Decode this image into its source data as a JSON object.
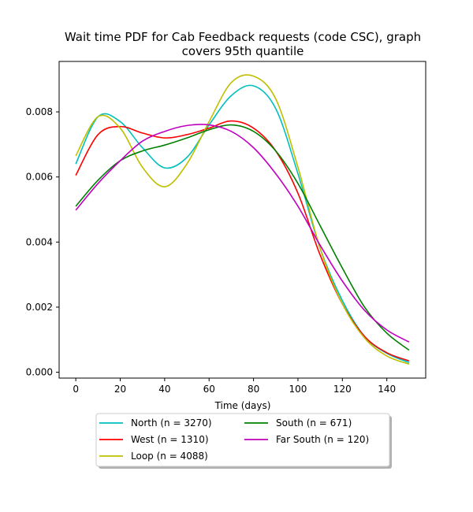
{
  "chart_data": {
    "type": "line",
    "title_line1": "Wait time PDF for Cab Feedback  requests (code CSC), graph",
    "title_line2": "covers 95th quantile",
    "xlabel": "Time (days)",
    "ylabel": "",
    "xlim": [
      -7.5,
      157.5
    ],
    "ylim": [
      -0.00018,
      0.00955
    ],
    "xticks": [
      0,
      20,
      40,
      60,
      80,
      100,
      120,
      140
    ],
    "yticks": [
      0.0,
      0.002,
      0.004,
      0.006,
      0.008
    ],
    "ytick_labels": [
      "0.000",
      "0.002",
      "0.004",
      "0.006",
      "0.008"
    ],
    "grid": false,
    "legend_position": "below-center",
    "x": [
      0,
      10,
      20,
      30,
      40,
      50,
      60,
      70,
      80,
      90,
      100,
      110,
      120,
      130,
      140,
      150
    ],
    "series": [
      {
        "name": "North (n = 3270)",
        "color": "#00bfbf",
        "values": [
          0.0064,
          0.00785,
          0.0077,
          0.0069,
          0.00628,
          0.0066,
          0.0076,
          0.0085,
          0.0088,
          0.0081,
          0.0061,
          0.0038,
          0.0022,
          0.0011,
          0.00058,
          0.0003
        ]
      },
      {
        "name": "West (n = 1310)",
        "color": "#ff0000",
        "values": [
          0.00605,
          0.0073,
          0.00755,
          0.00735,
          0.0072,
          0.0073,
          0.0075,
          0.00772,
          0.0075,
          0.0068,
          0.0055,
          0.0036,
          0.0021,
          0.0011,
          0.0006,
          0.00035
        ]
      },
      {
        "name": "Loop (n = 4088)",
        "color": "#bfbf00",
        "values": [
          0.00665,
          0.00785,
          0.0075,
          0.0063,
          0.0057,
          0.0064,
          0.0077,
          0.0089,
          0.0091,
          0.0084,
          0.0063,
          0.0038,
          0.0021,
          0.00105,
          0.0005,
          0.00025
        ]
      },
      {
        "name": "South (n = 671)",
        "color": "#008000",
        "values": [
          0.0051,
          0.0059,
          0.0065,
          0.0068,
          0.00698,
          0.0072,
          0.00745,
          0.0076,
          0.0074,
          0.0068,
          0.0058,
          0.0045,
          0.0032,
          0.002,
          0.0012,
          0.00068
        ]
      },
      {
        "name": "Far South (n = 120)",
        "color": "#bf00bf",
        "values": [
          0.00498,
          0.0058,
          0.0065,
          0.0071,
          0.0074,
          0.00758,
          0.0076,
          0.0074,
          0.0069,
          0.0061,
          0.0051,
          0.0039,
          0.0028,
          0.0019,
          0.0013,
          0.00093
        ]
      }
    ]
  }
}
